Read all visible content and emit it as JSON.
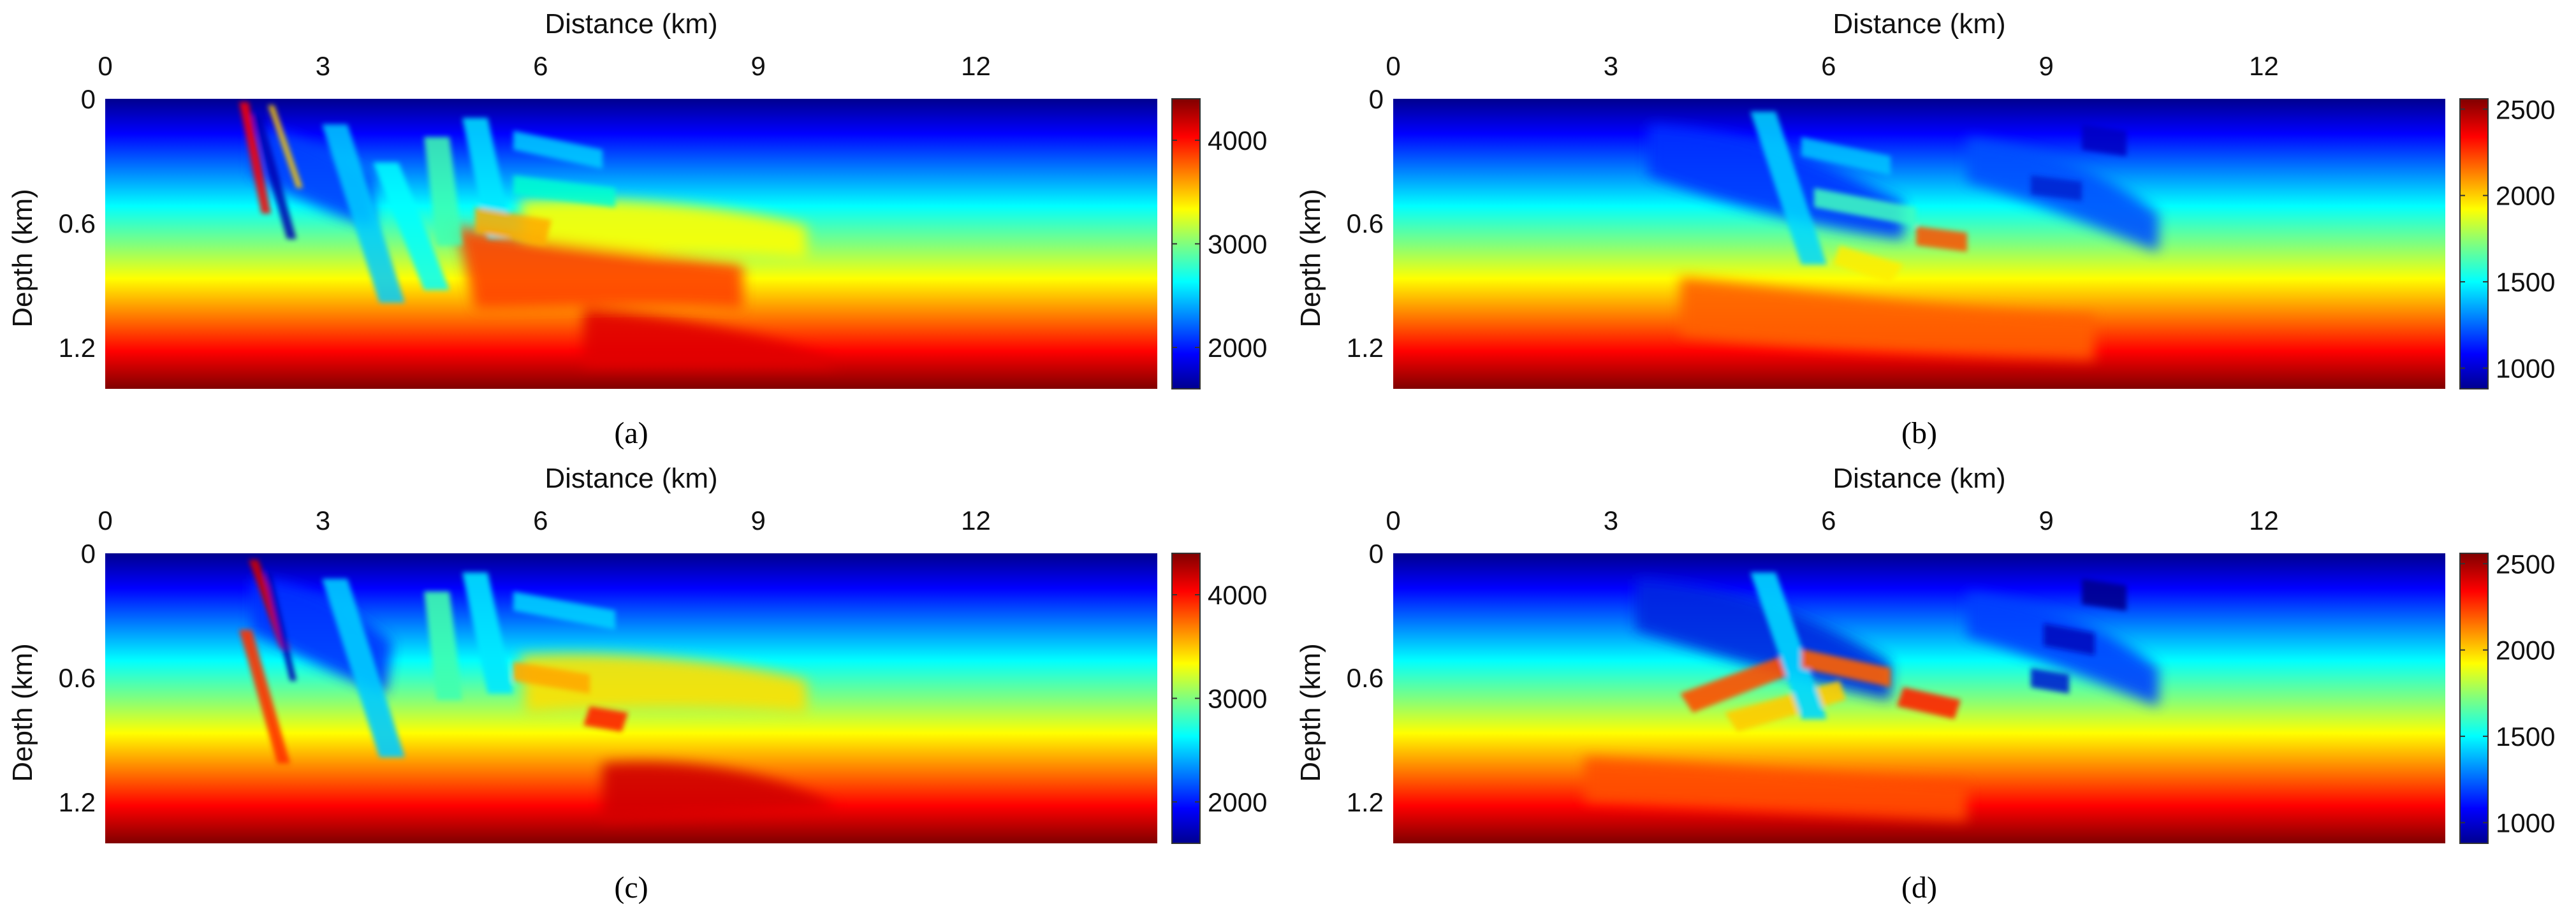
{
  "figure": {
    "panels": [
      {
        "caption": "(a)",
        "title": "Distance (km)",
        "ylabel": "Depth (km)",
        "xticks": [
          "0",
          "3",
          "6",
          "9",
          "12"
        ],
        "yticks": [
          "0",
          "0.6",
          "1.2"
        ],
        "colorbar": {
          "min": 1600,
          "max": 4400,
          "ticks": [
            "2000",
            "3000",
            "4000"
          ]
        }
      },
      {
        "caption": "(b)",
        "title": "Distance (km)",
        "ylabel": "Depth (km)",
        "xticks": [
          "0",
          "3",
          "6",
          "9",
          "12"
        ],
        "yticks": [
          "0",
          "0.6",
          "1.2"
        ],
        "colorbar": {
          "min": 880,
          "max": 2560,
          "ticks": [
            "1000",
            "1500",
            "2000",
            "2500"
          ]
        }
      },
      {
        "caption": "(c)",
        "title": "Distance (km)",
        "ylabel": "Depth (km)",
        "xticks": [
          "0",
          "3",
          "6",
          "9",
          "12"
        ],
        "yticks": [
          "0",
          "0.6",
          "1.2"
        ],
        "colorbar": {
          "min": 1600,
          "max": 4400,
          "ticks": [
            "2000",
            "3000",
            "4000"
          ]
        }
      },
      {
        "caption": "(d)",
        "title": "Distance (km)",
        "ylabel": "Depth (km)",
        "xticks": [
          "0",
          "3",
          "6",
          "9",
          "12"
        ],
        "yticks": [
          "0",
          "0.6",
          "1.2"
        ],
        "colorbar": {
          "min": 880,
          "max": 2560,
          "ticks": [
            "1000",
            "1500",
            "2000",
            "2500"
          ]
        }
      }
    ]
  },
  "chart_data": [
    {
      "type": "heatmap",
      "panel": "(a)",
      "xlabel": "Distance (km)",
      "ylabel": "Depth (km)",
      "xlim": [
        0,
        14.5
      ],
      "ylim": [
        1.4,
        0
      ],
      "colormap": "jet",
      "value_range": [
        1600,
        4400
      ],
      "colorbar_ticks": [
        2000,
        3000,
        4000
      ]
    },
    {
      "type": "heatmap",
      "panel": "(b)",
      "xlabel": "Distance (km)",
      "ylabel": "Depth (km)",
      "xlim": [
        0,
        14.5
      ],
      "ylim": [
        1.4,
        0
      ],
      "colormap": "jet",
      "value_range": [
        880,
        2560
      ],
      "colorbar_ticks": [
        1000,
        1500,
        2000,
        2500
      ]
    },
    {
      "type": "heatmap",
      "panel": "(c)",
      "xlabel": "Distance (km)",
      "ylabel": "Depth (km)",
      "xlim": [
        0,
        14.5
      ],
      "ylim": [
        1.4,
        0
      ],
      "colormap": "jet",
      "value_range": [
        1600,
        4400
      ],
      "colorbar_ticks": [
        2000,
        3000,
        4000
      ]
    },
    {
      "type": "heatmap",
      "panel": "(d)",
      "xlabel": "Distance (km)",
      "ylabel": "Depth (km)",
      "xlim": [
        0,
        14.5
      ],
      "ylim": [
        1.4,
        0
      ],
      "colormap": "jet",
      "value_range": [
        880,
        2560
      ],
      "colorbar_ticks": [
        1000,
        1500,
        2000,
        2500
      ]
    }
  ]
}
